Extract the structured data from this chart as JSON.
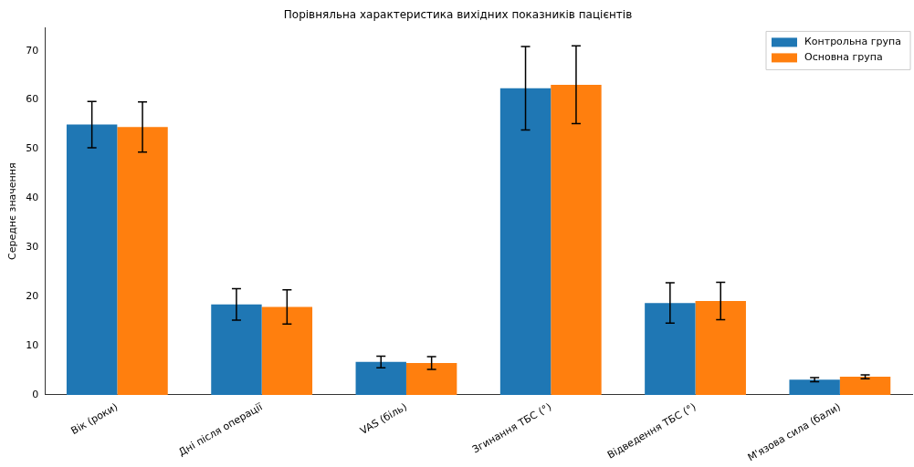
{
  "chart_data": {
    "type": "bar",
    "title": "Порівняльна характеристика вихідних показників пацієнтів",
    "ylabel": "Середнє значення",
    "categories": [
      "Вік (роки)",
      "Дні після операції",
      "VAS (біль)",
      "Згинання ТБС (°)",
      "Відведення ТБС (°)",
      "М'язова сила (бали)"
    ],
    "series": [
      {
        "name": "Контрольна група",
        "color": "#1f77b4",
        "values": [
          55,
          18.4,
          6.7,
          62.4,
          18.7,
          3.1
        ],
        "errors": [
          4.7,
          3.2,
          1.2,
          8.5,
          4.1,
          0.4
        ]
      },
      {
        "name": "Основна група",
        "color": "#ff7f0e",
        "values": [
          54.5,
          17.9,
          6.5,
          63.1,
          19.1,
          3.7
        ],
        "errors": [
          5.1,
          3.5,
          1.3,
          7.9,
          3.8,
          0.4
        ]
      }
    ],
    "ylim": [
      0,
      74.7
    ],
    "yticks": [
      0,
      10,
      20,
      30,
      40,
      50,
      60,
      70
    ],
    "grid": false,
    "legend": "top right"
  }
}
